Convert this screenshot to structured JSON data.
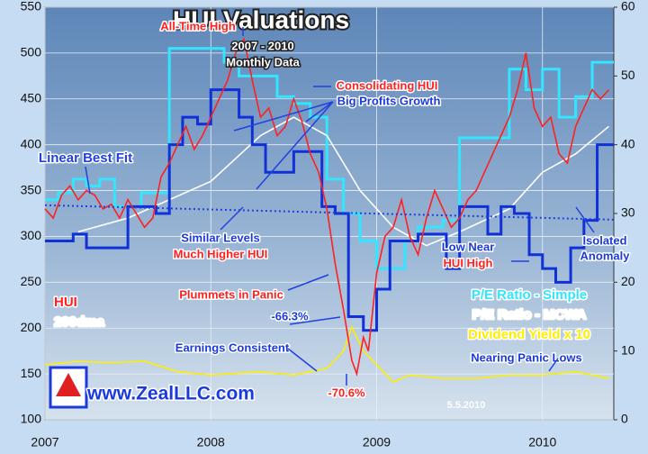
{
  "chart_data": {
    "type": "line",
    "title": "HUI Valuations",
    "subtitle": "2007 - 2010",
    "subtitle2": "Monthly Data",
    "xlim": [
      2007,
      2010.43
    ],
    "xticks": [
      2007,
      2008,
      2009,
      2010
    ],
    "ylim": [
      100,
      550
    ],
    "yticks": [
      100,
      150,
      200,
      250,
      300,
      350,
      400,
      450,
      500,
      550
    ],
    "y2lim": [
      0,
      60
    ],
    "y2ticks": [
      0,
      10,
      20,
      30,
      40,
      50,
      60
    ],
    "grid": true,
    "series": [
      {
        "name": "HUI",
        "color": "#ff2020",
        "axis": "y",
        "x": [
          2007.0,
          2007.05,
          2007.1,
          2007.15,
          2007.2,
          2007.25,
          2007.3,
          2007.35,
          2007.4,
          2007.45,
          2007.5,
          2007.55,
          2007.6,
          2007.65,
          2007.7,
          2007.75,
          2007.8,
          2007.85,
          2007.9,
          2007.95,
          2008.0,
          2008.05,
          2008.1,
          2008.15,
          2008.2,
          2008.25,
          2008.3,
          2008.35,
          2008.4,
          2008.45,
          2008.5,
          2008.55,
          2008.6,
          2008.65,
          2008.7,
          2008.75,
          2008.8,
          2008.85,
          2008.88,
          2008.92,
          2008.95,
          2009.0,
          2009.05,
          2009.1,
          2009.15,
          2009.2,
          2009.25,
          2009.3,
          2009.35,
          2009.4,
          2009.45,
          2009.5,
          2009.55,
          2009.6,
          2009.65,
          2009.7,
          2009.75,
          2009.8,
          2009.85,
          2009.9,
          2009.95,
          2010.0,
          2010.05,
          2010.1,
          2010.15,
          2010.2,
          2010.25,
          2010.3,
          2010.35,
          2010.4
        ],
        "values": [
          330,
          320,
          345,
          355,
          340,
          350,
          345,
          330,
          335,
          320,
          340,
          325,
          310,
          320,
          365,
          380,
          400,
          420,
          395,
          410,
          430,
          450,
          470,
          500,
          515,
          470,
          430,
          440,
          410,
          420,
          450,
          425,
          390,
          370,
          330,
          270,
          220,
          165,
          150,
          190,
          175,
          260,
          300,
          310,
          340,
          300,
          280,
          320,
          350,
          330,
          310,
          320,
          340,
          350,
          370,
          390,
          410,
          430,
          460,
          500,
          440,
          420,
          430,
          390,
          380,
          420,
          440,
          460,
          450,
          460
        ]
      },
      {
        "name": "200dma",
        "color": "#ffffff",
        "axis": "y",
        "x": [
          2007.2,
          2007.5,
          2008.0,
          2008.3,
          2008.5,
          2008.7,
          2008.9,
          2009.1,
          2009.3,
          2009.5,
          2009.8,
          2010.0,
          2010.2,
          2010.4
        ],
        "values": [
          305,
          320,
          360,
          410,
          430,
          410,
          350,
          310,
          290,
          305,
          330,
          370,
          390,
          420
        ]
      },
      {
        "name": "P/E Ratio - Simple",
        "color": "#33e6ff",
        "axis": "y2",
        "step": true,
        "x": [
          2007.0,
          2007.08,
          2007.17,
          2007.25,
          2007.33,
          2007.42,
          2007.58,
          2007.75,
          2008.0,
          2008.08,
          2008.17,
          2008.3,
          2008.4,
          2008.5,
          2008.6,
          2008.7,
          2008.8,
          2008.9,
          2009.0,
          2009.17,
          2009.25,
          2009.4,
          2009.5,
          2009.6,
          2009.8,
          2009.9,
          2010.0,
          2010.1,
          2010.2,
          2010.3,
          2010.43
        ],
        "values": [
          32,
          33,
          35,
          34,
          35,
          31,
          33,
          54,
          54,
          52,
          50,
          50,
          47,
          46,
          44,
          35,
          30,
          26,
          22,
          26,
          28,
          29,
          41,
          41,
          51,
          48,
          51,
          44,
          47,
          52,
          52
        ]
      },
      {
        "name": "P/E Ratio - MCWA",
        "color": "#1030d8",
        "axis": "y2",
        "step": true,
        "x": [
          2007.0,
          2007.17,
          2007.25,
          2007.4,
          2007.5,
          2007.67,
          2007.75,
          2007.83,
          2007.92,
          2008.0,
          2008.17,
          2008.25,
          2008.33,
          2008.5,
          2008.67,
          2008.75,
          2008.83,
          2008.92,
          2009.0,
          2009.08,
          2009.25,
          2009.42,
          2009.5,
          2009.67,
          2009.75,
          2009.83,
          2009.92,
          2010.0,
          2010.08,
          2010.17,
          2010.25,
          2010.33,
          2010.43
        ],
        "values": [
          26,
          27,
          25,
          25,
          31,
          30,
          40,
          44,
          43,
          48,
          44,
          40,
          36,
          39,
          31,
          30,
          15,
          13,
          19,
          26,
          27,
          22,
          31,
          27,
          31,
          30,
          24,
          22,
          20,
          25,
          29,
          40,
          40
        ]
      },
      {
        "name": "Dividend Yield x 10",
        "color": "#ffee00",
        "axis": "y2",
        "x": [
          2007.0,
          2007.2,
          2007.4,
          2007.6,
          2007.8,
          2008.0,
          2008.3,
          2008.5,
          2008.7,
          2008.8,
          2008.85,
          2008.92,
          2009.0,
          2009.1,
          2009.2,
          2009.4,
          2009.6,
          2009.8,
          2010.0,
          2010.2,
          2010.4
        ],
        "values": [
          8,
          8.5,
          8.3,
          8.5,
          7,
          6.5,
          7,
          6.5,
          7.5,
          10,
          13.5,
          10,
          8,
          5.5,
          6.5,
          6,
          6,
          6.5,
          6.5,
          7,
          6
        ]
      },
      {
        "name": "Linear Best Fit",
        "color": "#2040e0",
        "axis": "y2",
        "dotted": true,
        "x": [
          2007.0,
          2010.43
        ],
        "values": [
          31.2,
          29.1
        ]
      }
    ],
    "annotations": [
      {
        "text": "All-Time High",
        "color": "#ff2020"
      },
      {
        "text": "Consolidating HUI",
        "color": "#ff2020"
      },
      {
        "text": "Big Profits Growth",
        "color": "#1a3adc"
      },
      {
        "text": "Similar Levels",
        "color": "#1a3adc"
      },
      {
        "text": "Much Higher HUI",
        "color": "#ff2020"
      },
      {
        "text": "Plummets in Panic",
        "color": "#ff2020"
      },
      {
        "text": "-66.3%",
        "color": "#1a3adc"
      },
      {
        "text": "Earnings Consistent",
        "color": "#1a3adc"
      },
      {
        "text": "-70.6%",
        "color": "#ff2020"
      },
      {
        "text": "Low Near",
        "color": "#1a3adc"
      },
      {
        "text": "HUI High",
        "color": "#ff2020"
      },
      {
        "text": "Isolated",
        "color": "#1a3adc"
      },
      {
        "text": "Anomaly",
        "color": "#1a3adc"
      },
      {
        "text": "Nearing Panic Lows",
        "color": "#1a3adc"
      },
      {
        "text": "www.ZealLLC.com",
        "color": "#1a3adc"
      },
      {
        "text": "5.5.2010",
        "color": "#ffffff"
      }
    ]
  }
}
